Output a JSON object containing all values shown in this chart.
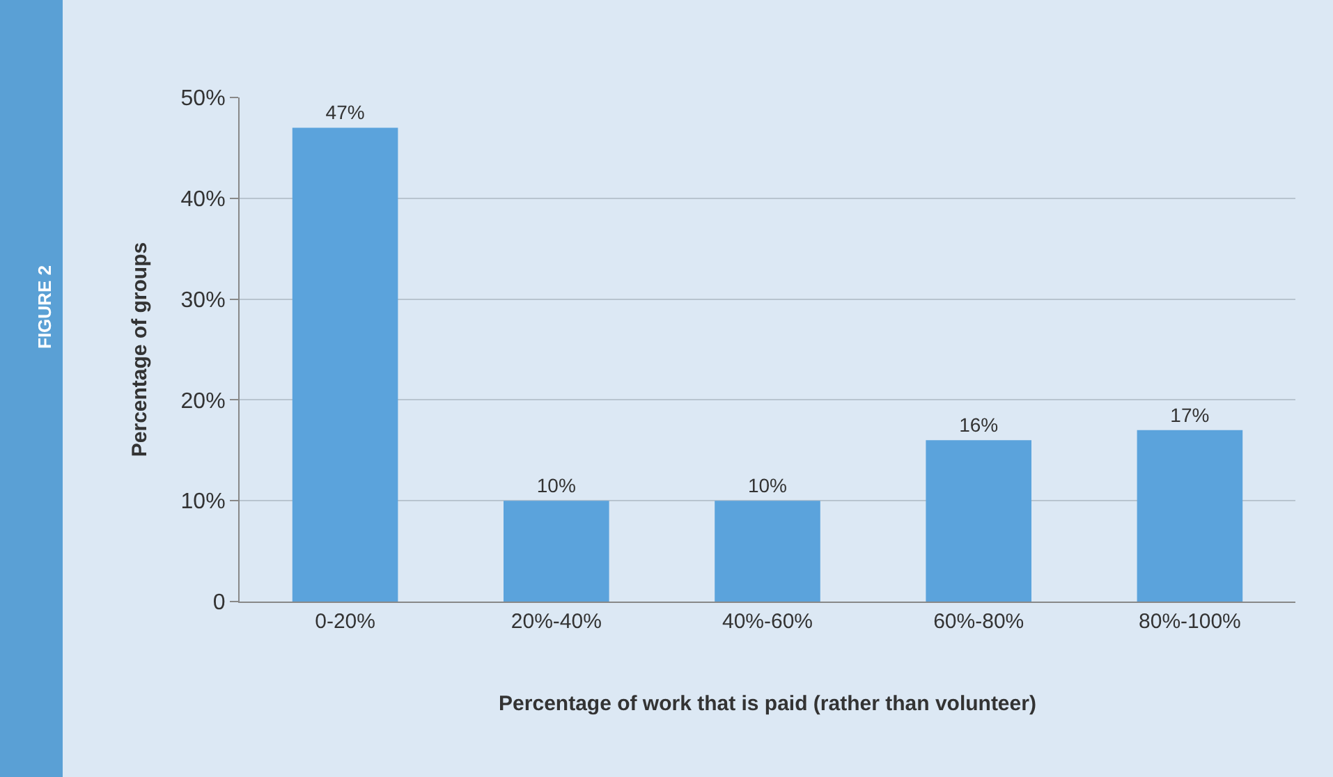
{
  "chart_data": {
    "type": "bar",
    "xlabel": "Percentage of work that is paid (rather than volunteer)",
    "ylabel": "Percentage of groups",
    "annotations": [
      "FIGURE 2"
    ],
    "categories": [
      "0-20%",
      "20%-40%",
      "40%-60%",
      "60%-80%",
      "80%-100%"
    ],
    "values": [
      47,
      10,
      10,
      16,
      17
    ],
    "value_labels": [
      "47%",
      "10%",
      "10%",
      "16%",
      "17%"
    ],
    "color": "#5ba3dc",
    "ylim": [
      0,
      50
    ],
    "yticks": [
      0,
      {
        "value": 10,
        "label": "10%"
      },
      {
        "value": 20,
        "label": "20%"
      },
      {
        "value": 30,
        "label": "30%"
      },
      {
        "value": 40,
        "label": "40%"
      },
      {
        "value": 50,
        "label": "50%"
      }
    ],
    "grid": "y"
  }
}
